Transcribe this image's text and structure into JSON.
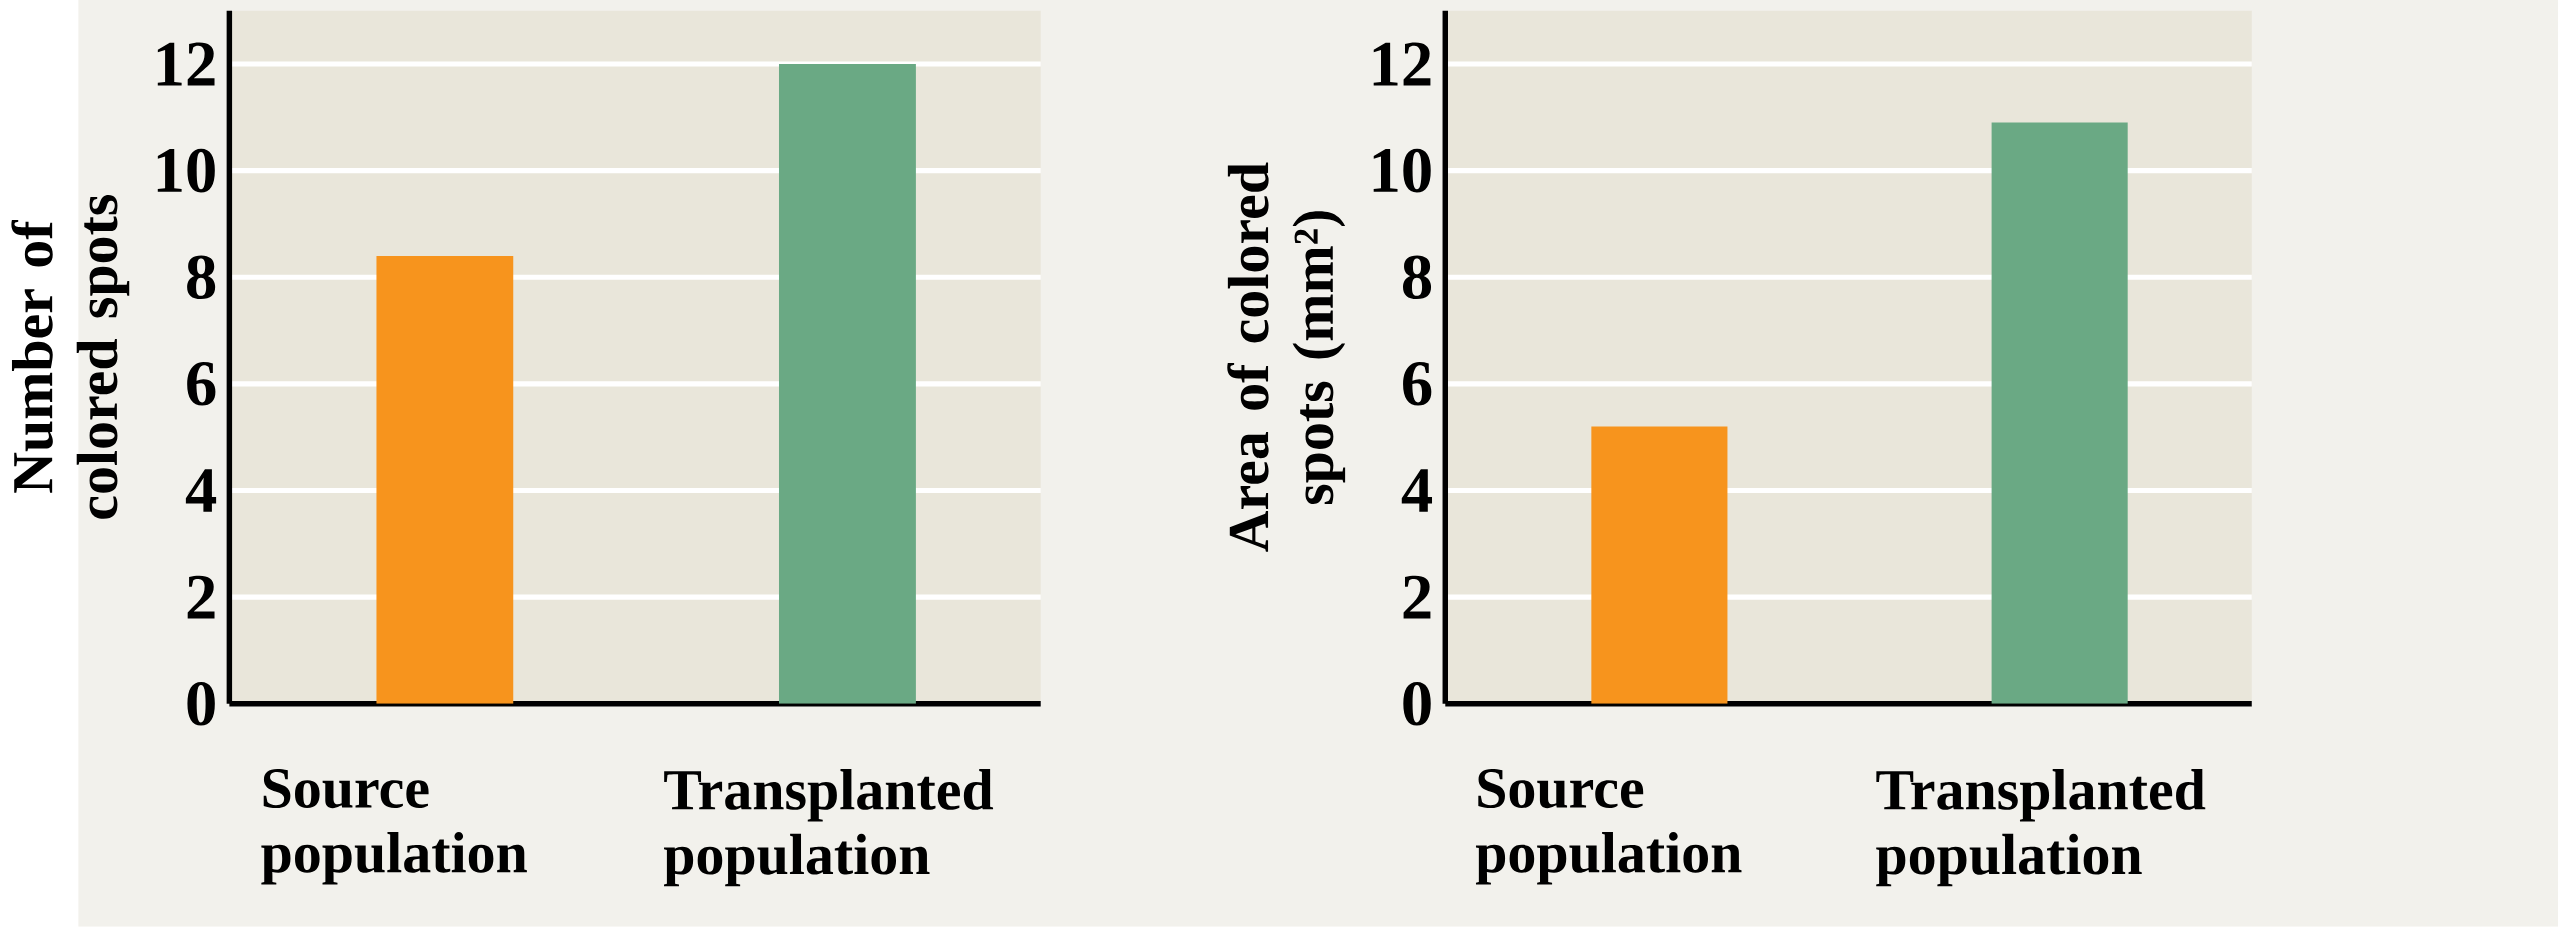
{
  "chart_data": [
    {
      "type": "bar",
      "ylabel": "Number of colored spots",
      "categories": [
        "Source population",
        "Transplanted population"
      ],
      "values": [
        8.4,
        12.0
      ],
      "colors": [
        "#f7941d",
        "#6aa984"
      ],
      "ylim": [
        0,
        13
      ],
      "yticks": [
        0,
        2,
        4,
        6,
        8,
        10,
        12
      ],
      "grid": "y"
    },
    {
      "type": "bar",
      "ylabel": "Area of colored spots (mm²)",
      "categories": [
        "Source population",
        "Transplanted population"
      ],
      "values": [
        5.2,
        10.9
      ],
      "colors": [
        "#f7941d",
        "#6aa984"
      ],
      "ylim": [
        0,
        13
      ],
      "yticks": [
        0,
        2,
        4,
        6,
        8,
        10,
        12
      ],
      "grid": "y"
    }
  ]
}
